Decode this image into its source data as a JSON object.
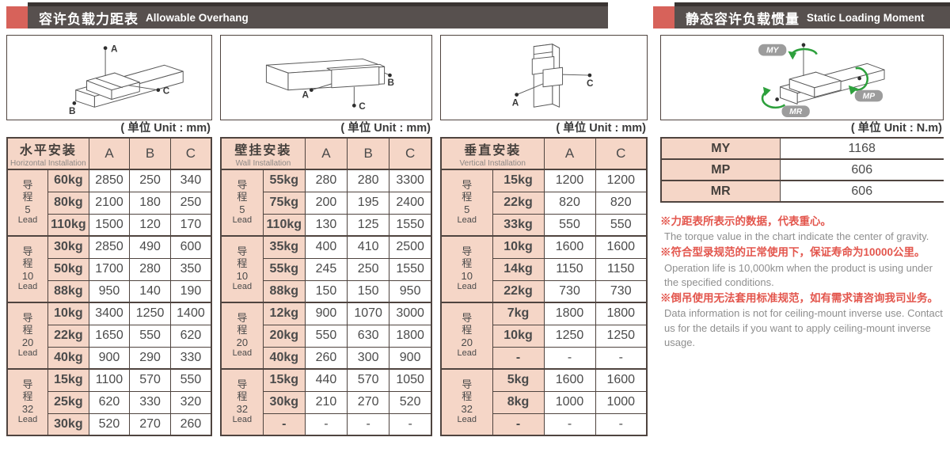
{
  "headers": {
    "left": {
      "zh": "容许负载力距表",
      "en": "Allowable Overhang"
    },
    "right": {
      "zh": "静态容许负载惯量",
      "en": "Static Loading Moment"
    }
  },
  "diagram_labels": {
    "a": "A",
    "b": "B",
    "c": "C",
    "my": "MY",
    "mp": "MP",
    "mr": "MR"
  },
  "tables": [
    {
      "unit": "( 单位 Unit : mm)",
      "title_zh": "水平安装",
      "title_en": "Horizontal Installation",
      "columns": [
        "A",
        "B",
        "C"
      ],
      "groups": [
        {
          "zh": "导程",
          "num": "5",
          "en": "Lead",
          "rows": [
            {
              "load": "60kg",
              "values": [
                "2850",
                "250",
                "340"
              ]
            },
            {
              "load": "80kg",
              "values": [
                "2100",
                "180",
                "250"
              ]
            },
            {
              "load": "110kg",
              "values": [
                "1500",
                "120",
                "170"
              ]
            }
          ]
        },
        {
          "zh": "导程",
          "num": "10",
          "en": "Lead",
          "rows": [
            {
              "load": "30kg",
              "values": [
                "2850",
                "490",
                "600"
              ]
            },
            {
              "load": "50kg",
              "values": [
                "1700",
                "280",
                "350"
              ]
            },
            {
              "load": "88kg",
              "values": [
                "950",
                "140",
                "190"
              ]
            }
          ]
        },
        {
          "zh": "导程",
          "num": "20",
          "en": "Lead",
          "rows": [
            {
              "load": "10kg",
              "values": [
                "3400",
                "1250",
                "1400"
              ]
            },
            {
              "load": "22kg",
              "values": [
                "1650",
                "550",
                "620"
              ]
            },
            {
              "load": "40kg",
              "values": [
                "900",
                "290",
                "330"
              ]
            }
          ]
        },
        {
          "zh": "导程",
          "num": "32",
          "en": "Lead",
          "rows": [
            {
              "load": "15kg",
              "values": [
                "1100",
                "570",
                "550"
              ]
            },
            {
              "load": "25kg",
              "values": [
                "620",
                "330",
                "320"
              ]
            },
            {
              "load": "30kg",
              "values": [
                "520",
                "270",
                "260"
              ]
            }
          ]
        }
      ]
    },
    {
      "unit": "( 单位 Unit : mm)",
      "title_zh": "壁挂安装",
      "title_en": "Wall Installation",
      "columns": [
        "A",
        "B",
        "C"
      ],
      "groups": [
        {
          "zh": "导程",
          "num": "5",
          "en": "Lead",
          "rows": [
            {
              "load": "55kg",
              "values": [
                "280",
                "280",
                "3300"
              ]
            },
            {
              "load": "75kg",
              "values": [
                "200",
                "195",
                "2400"
              ]
            },
            {
              "load": "110kg",
              "values": [
                "130",
                "125",
                "1550"
              ]
            }
          ]
        },
        {
          "zh": "导程",
          "num": "10",
          "en": "Lead",
          "rows": [
            {
              "load": "35kg",
              "values": [
                "400",
                "410",
                "2500"
              ]
            },
            {
              "load": "55kg",
              "values": [
                "245",
                "250",
                "1550"
              ]
            },
            {
              "load": "88kg",
              "values": [
                "150",
                "150",
                "950"
              ]
            }
          ]
        },
        {
          "zh": "导程",
          "num": "20",
          "en": "Lead",
          "rows": [
            {
              "load": "12kg",
              "values": [
                "900",
                "1070",
                "3000"
              ]
            },
            {
              "load": "20kg",
              "values": [
                "550",
                "630",
                "1800"
              ]
            },
            {
              "load": "40kg",
              "values": [
                "260",
                "300",
                "900"
              ]
            }
          ]
        },
        {
          "zh": "导程",
          "num": "32",
          "en": "Lead",
          "rows": [
            {
              "load": "15kg",
              "values": [
                "440",
                "570",
                "1050"
              ]
            },
            {
              "load": "30kg",
              "values": [
                "210",
                "270",
                "520"
              ]
            },
            {
              "load": "-",
              "values": [
                "-",
                "-",
                "-"
              ]
            }
          ]
        }
      ]
    },
    {
      "unit": "( 单位 Unit : mm)",
      "title_zh": "垂直安装",
      "title_en": "Vertical Installation",
      "columns": [
        "A",
        "C"
      ],
      "groups": [
        {
          "zh": "导程",
          "num": "5",
          "en": "Lead",
          "rows": [
            {
              "load": "15kg",
              "values": [
                "1200",
                "1200"
              ]
            },
            {
              "load": "22kg",
              "values": [
                "820",
                "820"
              ]
            },
            {
              "load": "33kg",
              "values": [
                "550",
                "550"
              ]
            }
          ]
        },
        {
          "zh": "导程",
          "num": "10",
          "en": "Lead",
          "rows": [
            {
              "load": "10kg",
              "values": [
                "1600",
                "1600"
              ]
            },
            {
              "load": "14kg",
              "values": [
                "1150",
                "1150"
              ]
            },
            {
              "load": "22kg",
              "values": [
                "730",
                "730"
              ]
            }
          ]
        },
        {
          "zh": "导程",
          "num": "20",
          "en": "Lead",
          "rows": [
            {
              "load": "7kg",
              "values": [
                "1800",
                "1800"
              ]
            },
            {
              "load": "10kg",
              "values": [
                "1250",
                "1250"
              ]
            },
            {
              "load": "-",
              "values": [
                "-",
                "-"
              ]
            }
          ]
        },
        {
          "zh": "导程",
          "num": "32",
          "en": "Lead",
          "rows": [
            {
              "load": "5kg",
              "values": [
                "1600",
                "1600"
              ]
            },
            {
              "load": "8kg",
              "values": [
                "1000",
                "1000"
              ]
            },
            {
              "load": "-",
              "values": [
                "-",
                "-"
              ]
            }
          ]
        }
      ]
    }
  ],
  "moment": {
    "unit": "( 单位 Unit : N.m)",
    "rows": [
      {
        "label": "MY",
        "value": "1168"
      },
      {
        "label": "MP",
        "value": "606"
      },
      {
        "label": "MR",
        "value": "606"
      }
    ]
  },
  "notes": [
    {
      "zh": "※力距表所表示的数据，代表重心。",
      "en": "The torque value in the chart indicate the center of gravity."
    },
    {
      "zh": "※符合型录规范的正常使用下，保证寿命为10000公里。",
      "en": "Operation life is 10,000km when the product is using under the specified conditions."
    },
    {
      "zh": "※倒吊使用无法套用标准规范，如有需求请咨询我司业务。",
      "en": "Data information is not for ceiling-mount inverse use. Contact us for the details if you want to apply ceiling-mount inverse usage."
    }
  ],
  "colors": {
    "accent_red": "#d7625a",
    "bar_dark": "#57504e",
    "cell_pink": "#f5d6c7",
    "border_dark": "#4f443f",
    "note_red": "#e3564d",
    "arrow_green": "#2da03c"
  }
}
